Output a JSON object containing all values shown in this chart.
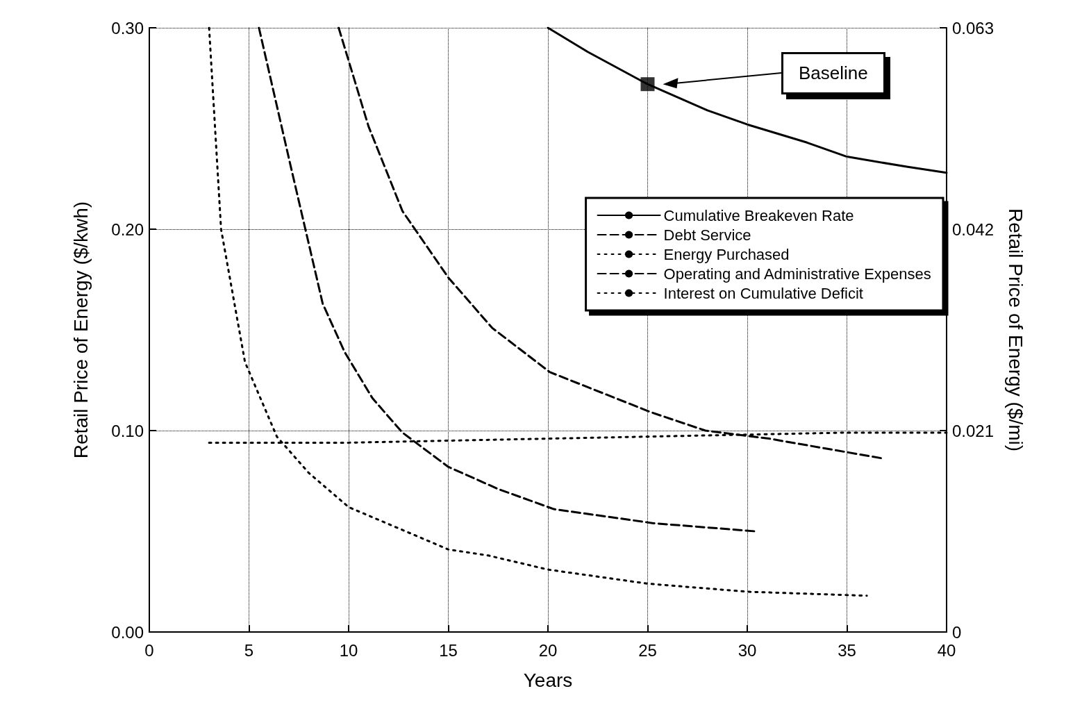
{
  "chart_data": {
    "type": "line",
    "xlabel": "Years",
    "ylabel": "Retail Price of Energy ($/kwh)",
    "y2label": "Retail Price of Energy ($/mi)",
    "xlim": [
      0,
      40
    ],
    "xticks": [
      0,
      5,
      10,
      15,
      20,
      25,
      30,
      35,
      40
    ],
    "ylim": [
      0,
      0.3
    ],
    "yticks": [
      {
        "value": 0,
        "label": "0.00"
      },
      {
        "value": 0.1,
        "label": "0.10"
      },
      {
        "value": 0.2,
        "label": "0.20"
      },
      {
        "value": 0.3,
        "label": "0.30"
      }
    ],
    "y2lim": [
      0,
      0.063
    ],
    "y2ticks": [
      0,
      0.021,
      0.042,
      0.063
    ],
    "grid": true,
    "legend": "right",
    "marker": "none",
    "annotations": [
      "Baseline"
    ],
    "series": [
      {
        "name": "Cumulative Breakeven Rate",
        "color": "#000000",
        "line_style": "solid",
        "x": [
          20,
          22,
          25,
          28,
          30,
          33,
          35,
          38,
          40
        ],
        "values": [
          0.3,
          0.288,
          0.272,
          0.259,
          0.252,
          0.243,
          0.236,
          0.231,
          0.228
        ]
      },
      {
        "name": "Debt Service",
        "color": "#000000",
        "line_style": "dashed",
        "x": [
          9.5,
          11,
          12.7,
          15,
          17.2,
          20.1,
          25.2,
          27.9,
          31.1,
          36.9
        ],
        "values": [
          0.3,
          0.251,
          0.209,
          0.176,
          0.151,
          0.129,
          0.109,
          0.1,
          0.096,
          0.086
        ]
      },
      {
        "name": "Energy Purchased",
        "color": "#000000",
        "line_style": "dotted",
        "x": [
          3,
          10,
          15,
          20,
          25,
          30,
          35,
          40
        ],
        "values": [
          0.094,
          0.094,
          0.095,
          0.096,
          0.097,
          0.098,
          0.099,
          0.099
        ]
      },
      {
        "name": "Operating and Administrative Expenses",
        "color": "#000000",
        "line_style": "dashed",
        "x": [
          5.5,
          7.1,
          8.7,
          9.8,
          11.2,
          12.7,
          15,
          17.5,
          20.3,
          25.3,
          30.4
        ],
        "values": [
          0.3,
          0.231,
          0.163,
          0.139,
          0.116,
          0.099,
          0.082,
          0.071,
          0.061,
          0.054,
          0.05
        ]
      },
      {
        "name": "Interest on Cumulative Deficit",
        "color": "#000000",
        "line_style": "dotted",
        "x": [
          3,
          3.6,
          4.8,
          6.4,
          8,
          10,
          15,
          17,
          20,
          25,
          30,
          36
        ],
        "values": [
          0.3,
          0.2,
          0.134,
          0.097,
          0.079,
          0.062,
          0.041,
          0.038,
          0.031,
          0.024,
          0.02,
          0.018
        ]
      },
      {
        "type": "scatter",
        "marker": "square",
        "color": "#000000",
        "x": [
          25
        ],
        "values": [
          0.272
        ]
      }
    ]
  }
}
